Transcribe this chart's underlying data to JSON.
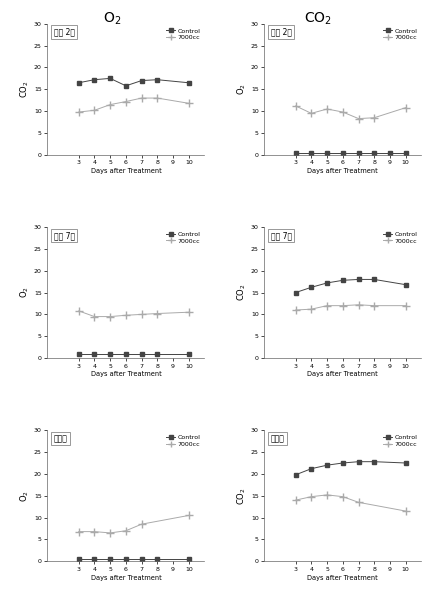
{
  "top_title_left": "O$_2$",
  "top_title_right": "CO$_2$",
  "legend_control": "Control",
  "legend_7000": "7000cc",
  "xlabel": "Days after Treatment",
  "days": [
    3,
    4,
    5,
    6,
    7,
    8,
    9,
    10
  ],
  "subplots": [
    {
      "label": "고지 2호",
      "ylabel_left": "CO$_2$",
      "ylabel_right": "O$_2$",
      "left_control": [
        16.5,
        17.2,
        17.5,
        15.8,
        17.0,
        17.2,
        null,
        16.5
      ],
      "left_7000": [
        9.8,
        10.2,
        11.5,
        12.2,
        13.0,
        13.0,
        null,
        11.8
      ],
      "right_control": [
        0.5,
        0.5,
        0.5,
        0.5,
        0.5,
        0.5,
        0.5,
        0.5
      ],
      "right_7000": [
        11.2,
        9.5,
        10.5,
        9.8,
        8.3,
        8.5,
        null,
        10.8
      ]
    },
    {
      "label": "준주 7호",
      "ylabel_left": "O$_2$",
      "ylabel_right": "CO$_2$",
      "left_control": [
        1.0,
        1.0,
        1.0,
        1.0,
        1.0,
        1.0,
        null,
        1.0
      ],
      "left_7000": [
        10.8,
        9.5,
        9.5,
        9.8,
        10.0,
        10.2,
        null,
        10.5
      ],
      "right_control": [
        15.0,
        16.2,
        17.2,
        17.8,
        18.0,
        18.0,
        null,
        16.8
      ],
      "right_7000": [
        11.0,
        11.2,
        12.0,
        12.0,
        12.2,
        12.0,
        null,
        12.0
      ]
    },
    {
      "label": "새송이",
      "ylabel_left": "O$_2$",
      "ylabel_right": "CO$_2$",
      "left_control": [
        0.5,
        0.5,
        0.5,
        0.5,
        0.5,
        0.5,
        null,
        0.5
      ],
      "left_7000": [
        6.8,
        6.8,
        6.5,
        7.0,
        8.5,
        null,
        null,
        10.5
      ],
      "right_control": [
        19.8,
        21.2,
        22.0,
        22.5,
        22.8,
        22.8,
        null,
        22.5
      ],
      "right_7000": [
        14.0,
        14.8,
        15.2,
        14.8,
        13.5,
        null,
        null,
        11.5
      ]
    }
  ],
  "ylim": [
    0,
    30
  ],
  "yticks": [
    0,
    5,
    10,
    15,
    20,
    25,
    30
  ],
  "xlim": [
    1,
    11
  ],
  "xticks": [
    3,
    4,
    5,
    6,
    7,
    8,
    9,
    10
  ],
  "control_color": "#444444",
  "film_color": "#aaaaaa",
  "control_marker": "s",
  "film_marker": "+"
}
